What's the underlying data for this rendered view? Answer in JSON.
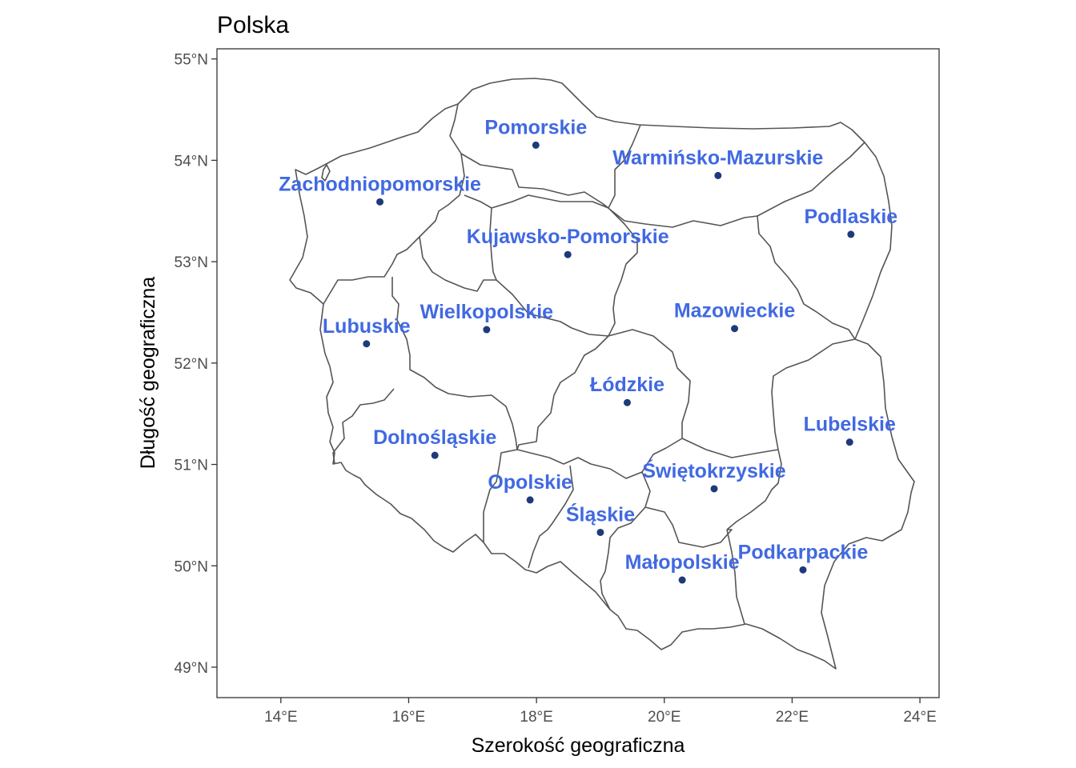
{
  "map": {
    "title": "Polska",
    "xlabel": "Szerokość geograficzna",
    "ylabel": "Długość geograficzna",
    "xlim": [
      13,
      24.3
    ],
    "ylim": [
      48.7,
      55.1
    ],
    "x_ticks": [
      {
        "value": 14,
        "label": "14°E"
      },
      {
        "value": 16,
        "label": "16°E"
      },
      {
        "value": 18,
        "label": "18°E"
      },
      {
        "value": 20,
        "label": "20°E"
      },
      {
        "value": 22,
        "label": "22°E"
      },
      {
        "value": 24,
        "label": "24°E"
      }
    ],
    "y_ticks": [
      {
        "value": 49,
        "label": "49°N"
      },
      {
        "value": 50,
        "label": "50°N"
      },
      {
        "value": 51,
        "label": "51°N"
      },
      {
        "value": 52,
        "label": "52°N"
      },
      {
        "value": 53,
        "label": "53°N"
      },
      {
        "value": 54,
        "label": "54°N"
      },
      {
        "value": 55,
        "label": "55°N"
      }
    ],
    "label_color": "#4169E1",
    "point_color": "#1F3A7A",
    "border_color": "#555555",
    "regions": [
      {
        "name": "Pomorskie",
        "lon": 17.99,
        "lat": 54.15
      },
      {
        "name": "Warmińsko-Mazurskie",
        "lon": 20.84,
        "lat": 53.85
      },
      {
        "name": "Zachodniopomorskie",
        "lon": 15.55,
        "lat": 53.59
      },
      {
        "name": "Podlaskie",
        "lon": 22.92,
        "lat": 53.27
      },
      {
        "name": "Kujawsko-Pomorskie",
        "lon": 18.49,
        "lat": 53.07
      },
      {
        "name": "Mazowieckie",
        "lon": 21.1,
        "lat": 52.34
      },
      {
        "name": "Wielkopolskie",
        "lon": 17.22,
        "lat": 52.33
      },
      {
        "name": "Lubuskie",
        "lon": 15.34,
        "lat": 52.19
      },
      {
        "name": "Łódzkie",
        "lon": 19.42,
        "lat": 51.61
      },
      {
        "name": "Lubelskie",
        "lon": 22.9,
        "lat": 51.22
      },
      {
        "name": "Dolnośląskie",
        "lon": 16.41,
        "lat": 51.09
      },
      {
        "name": "Świętokrzyskie",
        "lon": 20.78,
        "lat": 50.76
      },
      {
        "name": "Opolskie",
        "lon": 17.9,
        "lat": 50.65
      },
      {
        "name": "Śląskie",
        "lon": 19.0,
        "lat": 50.33
      },
      {
        "name": "Podkarpackie",
        "lon": 22.17,
        "lat": 49.96
      },
      {
        "name": "Małopolskie",
        "lon": 20.28,
        "lat": 49.86
      }
    ]
  }
}
